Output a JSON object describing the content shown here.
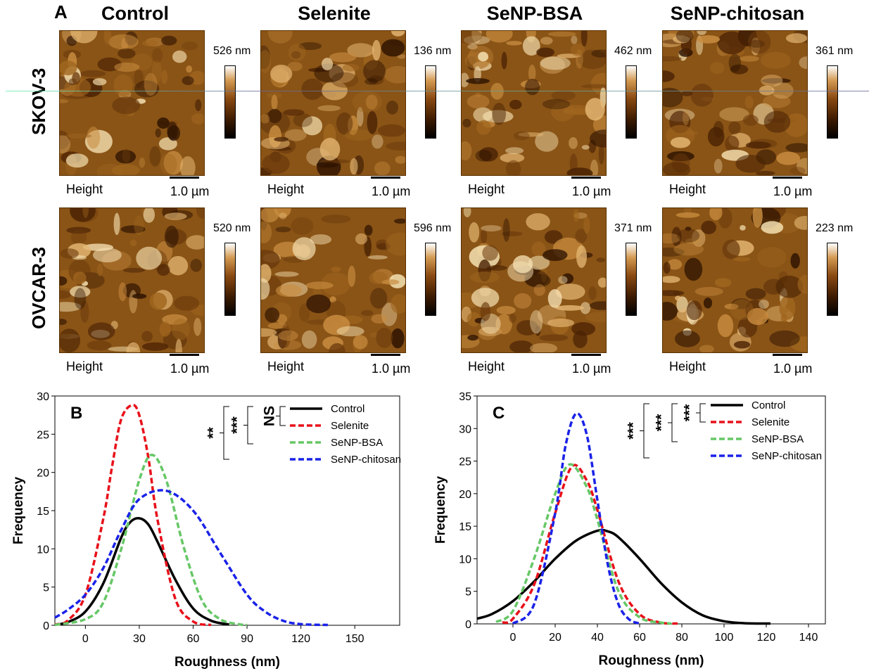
{
  "panel_a": {
    "letter": "A",
    "columns": [
      "Control",
      "Selenite",
      "SeNP-BSA",
      "SeNP-chitosan"
    ],
    "rows": [
      "SKOV-3",
      "OVCAR-3"
    ],
    "height_label": "Height",
    "scale_label": "1.0 µm",
    "colorbar_max": [
      [
        "526 nm",
        "136 nm",
        "462 nm",
        "361 nm"
      ],
      [
        "520 nm",
        "596 nm",
        "371 nm",
        "223 nm"
      ]
    ]
  },
  "chart_data": [
    {
      "type": "line",
      "panel": "B",
      "xlabel": "Roughness (nm)",
      "ylabel": "Frequency",
      "xlim": [
        -17,
        175
      ],
      "ylim": [
        0,
        30
      ],
      "xticks": [
        0,
        30,
        60,
        90,
        120,
        150
      ],
      "yticks": [
        0,
        5,
        10,
        15,
        20,
        25,
        30
      ],
      "legend_position": "top-right",
      "series": [
        {
          "name": "Control",
          "color": "#000000",
          "dashed": false,
          "x": [
            -17,
            -10,
            0,
            10,
            20,
            25,
            30,
            35,
            40,
            50,
            60,
            70,
            80
          ],
          "y": [
            0.1,
            0.4,
            1.8,
            5.5,
            11.5,
            13.5,
            14.0,
            13.2,
            11.0,
            6.0,
            2.2,
            0.6,
            0.1
          ]
        },
        {
          "name": "Selenite",
          "color": "#e8101a",
          "dashed": true,
          "x": [
            -17,
            -10,
            0,
            10,
            15,
            20,
            26,
            30,
            35,
            40,
            50,
            60,
            70
          ],
          "y": [
            0.1,
            0.6,
            4.0,
            14.0,
            21.0,
            27.0,
            28.8,
            27.5,
            22.0,
            14.0,
            3.5,
            0.5,
            0.05
          ]
        },
        {
          "name": "SeNP-BSA",
          "color": "#66c766",
          "dashed": true,
          "x": [
            -17,
            0,
            10,
            20,
            30,
            37,
            45,
            55,
            65,
            75,
            85,
            90
          ],
          "y": [
            0.05,
            0.8,
            3.0,
            10.0,
            19.0,
            22.3,
            19.0,
            10.0,
            3.2,
            0.8,
            0.15,
            0.05
          ]
        },
        {
          "name": "SeNP-chitosan",
          "color": "#1a22e8",
          "dashed": true,
          "x": [
            -17,
            -10,
            0,
            10,
            20,
            30,
            45,
            60,
            75,
            90,
            100,
            110,
            120,
            135
          ],
          "y": [
            1.0,
            2.0,
            4.0,
            7.5,
            12.5,
            16.5,
            17.6,
            15.0,
            9.5,
            4.0,
            1.8,
            0.6,
            0.15,
            0.05
          ]
        }
      ],
      "significance": [
        {
          "label": "NS"
        },
        {
          "label": "***"
        },
        {
          "label": "**"
        }
      ]
    },
    {
      "type": "line",
      "panel": "C",
      "xlabel": "Roughness (nm)",
      "ylabel": "Frequency",
      "xlim": [
        -17,
        148
      ],
      "ylim": [
        0,
        35
      ],
      "xticks": [
        0,
        20,
        40,
        60,
        80,
        100,
        120,
        140
      ],
      "yticks": [
        0,
        5,
        10,
        15,
        20,
        25,
        30,
        35
      ],
      "legend_position": "top-right",
      "series": [
        {
          "name": "Control",
          "color": "#000000",
          "dashed": false,
          "x": [
            -17,
            -10,
            0,
            10,
            20,
            30,
            40,
            45,
            50,
            60,
            70,
            80,
            90,
            100,
            110,
            122
          ],
          "y": [
            0.8,
            1.5,
            3.5,
            6.5,
            10.0,
            12.8,
            14.3,
            14.2,
            13.3,
            10.0,
            6.3,
            3.3,
            1.3,
            0.4,
            0.1,
            0.05
          ]
        },
        {
          "name": "Selenite",
          "color": "#e8101a",
          "dashed": true,
          "x": [
            -5,
            0,
            10,
            20,
            28,
            35,
            40,
            50,
            60,
            70,
            78
          ],
          "y": [
            0.2,
            0.8,
            6.0,
            17.0,
            24.2,
            22.0,
            17.5,
            6.5,
            1.5,
            0.2,
            0.05
          ]
        },
        {
          "name": "SeNP-BSA",
          "color": "#66c766",
          "dashed": true,
          "x": [
            -8,
            0,
            10,
            20,
            27,
            35,
            40,
            50,
            60,
            70,
            75
          ],
          "y": [
            0.3,
            2.0,
            10.0,
            20.0,
            24.5,
            21.0,
            16.0,
            5.0,
            1.0,
            0.2,
            0.05
          ]
        },
        {
          "name": "SeNP-chitosan",
          "color": "#1a22e8",
          "dashed": true,
          "x": [
            0,
            10,
            20,
            25,
            30,
            35,
            40,
            45,
            50,
            55,
            60
          ],
          "y": [
            0.05,
            3.0,
            17.0,
            27.5,
            32.3,
            29.0,
            19.0,
            9.0,
            3.0,
            0.7,
            0.05
          ]
        }
      ],
      "significance": [
        {
          "label": "***"
        },
        {
          "label": "***"
        },
        {
          "label": "***"
        }
      ]
    }
  ]
}
